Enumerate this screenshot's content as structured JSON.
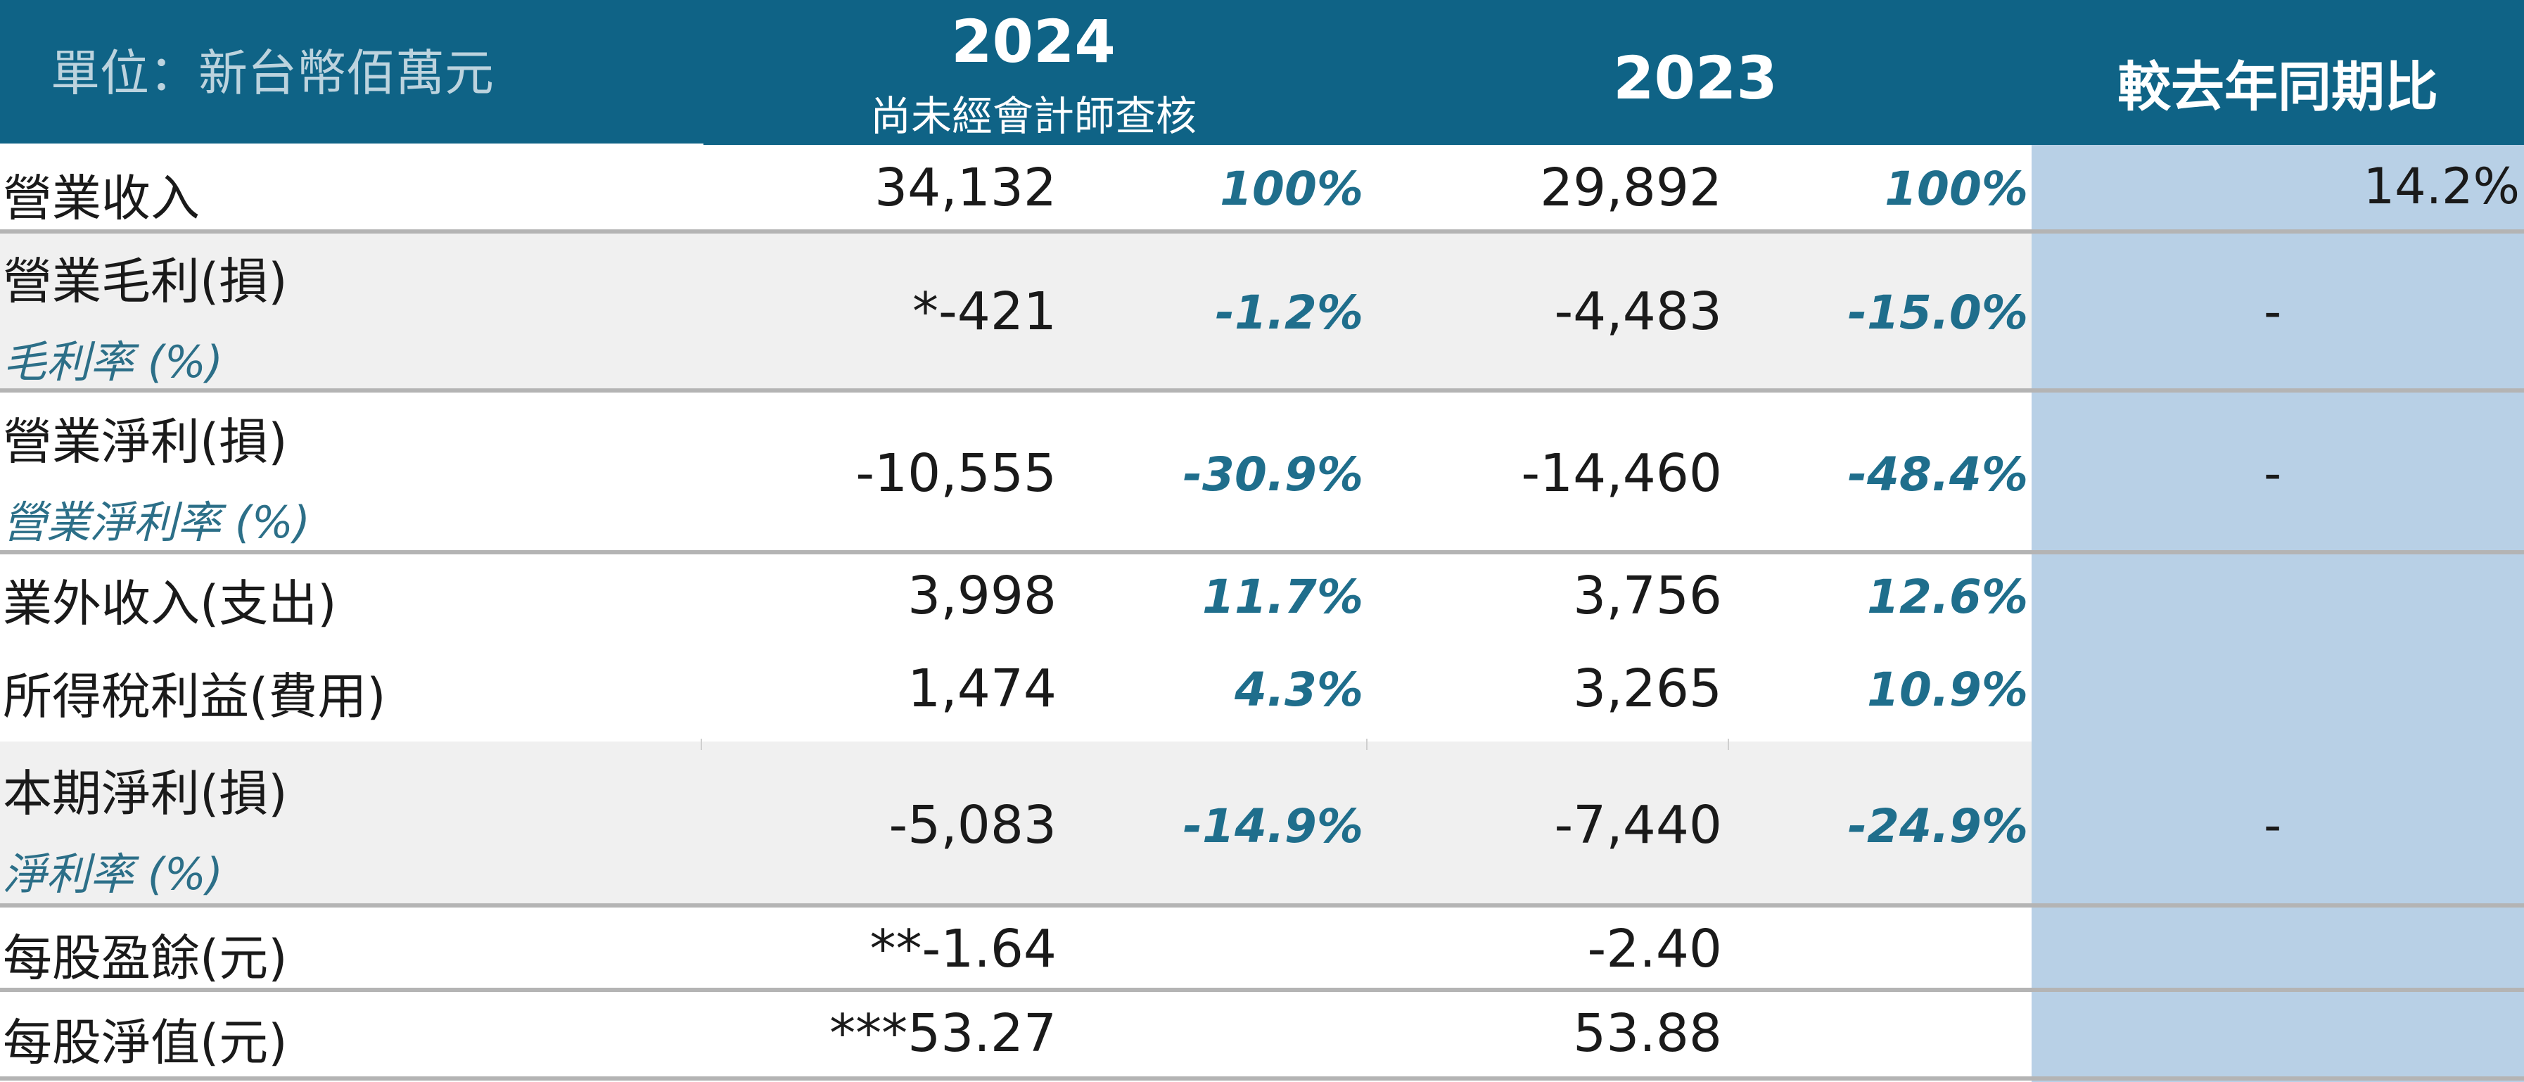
{
  "header": {
    "unit_label": "單位：新台幣佰萬元",
    "col_2024_year": "2024",
    "col_2024_note": "尚未經會計師查核",
    "col_2023_year": "2023",
    "col_yoy": "較去年同期比"
  },
  "rows": [
    {
      "label": "營業收入",
      "sublabel": "",
      "v2024": "34,132",
      "p2024": "100%",
      "v2023": "29,892",
      "p2023": "100%",
      "yoy": "14.2%"
    },
    {
      "label": "營業毛利(損)",
      "sublabel": "毛利率 (%)",
      "v2024": "*-421",
      "p2024": "-1.2%",
      "v2023": "-4,483",
      "p2023": "-15.0%",
      "yoy": "-"
    },
    {
      "label": "營業淨利(損)",
      "sublabel": "營業淨利率 (%)",
      "v2024": "-10,555",
      "p2024": "-30.9%",
      "v2023": "-14,460",
      "p2023": "-48.4%",
      "yoy": "-"
    },
    {
      "label": "業外收入(支出)",
      "sublabel": "",
      "v2024": "3,998",
      "p2024": "11.7%",
      "v2023": "3,756",
      "p2023": "12.6%",
      "yoy": ""
    },
    {
      "label": "所得稅利益(費用)",
      "sublabel": "",
      "v2024": "1,474",
      "p2024": "4.3%",
      "v2023": "3,265",
      "p2023": "10.9%",
      "yoy": ""
    },
    {
      "label": "本期淨利(損)",
      "sublabel": "淨利率 (%)",
      "v2024": "-5,083",
      "p2024": "-14.9%",
      "v2023": "-7,440",
      "p2023": "-24.9%",
      "yoy": "-"
    },
    {
      "label": "每股盈餘(元)",
      "sublabel": "",
      "v2024": "**-1.64",
      "p2024": "",
      "v2023": "-2.40",
      "p2023": "",
      "yoy": ""
    },
    {
      "label": "每股淨值(元)",
      "sublabel": "",
      "v2024": "***53.27",
      "p2024": "",
      "v2023": "53.88",
      "p2023": "",
      "yoy": ""
    }
  ],
  "colors": {
    "header_bg": "#0f6386",
    "yoy_column_bg": "#b8d0e6",
    "alt_row_bg": "#f0f0f0",
    "percent_text": "#1f6e8c",
    "separator": "#b4b4b4"
  }
}
